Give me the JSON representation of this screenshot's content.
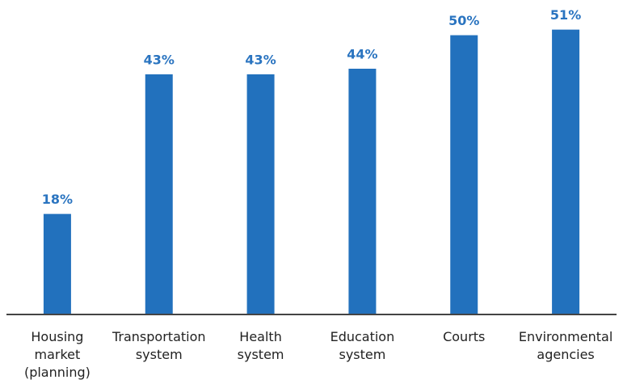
{
  "chart_data": {
    "type": "bar",
    "categories": [
      "Housing market (planning)",
      "Transportation system",
      "Health system",
      "Education system",
      "Courts",
      "Environmental agencies"
    ],
    "values": [
      18,
      43,
      43,
      44,
      50,
      51
    ],
    "value_labels": [
      "18%",
      "43%",
      "43%",
      "44%",
      "50%",
      "51%"
    ],
    "color": "#2271bd",
    "ylim": [
      0,
      55
    ]
  }
}
